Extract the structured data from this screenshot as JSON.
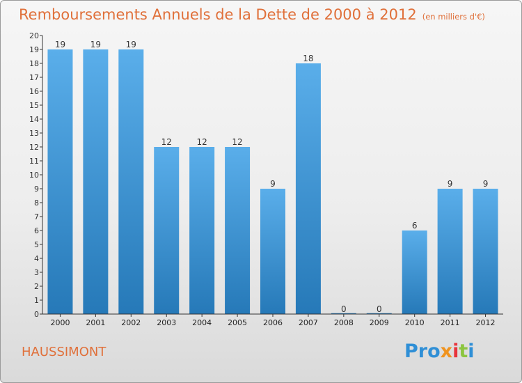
{
  "header": {
    "title": "Remboursements Annuels de la Dette de 2000 à 2012",
    "unit": "(en milliers d'€)"
  },
  "footer": {
    "commune": "HAUSSIMONT",
    "logo": [
      "Pro",
      "x",
      "i",
      "t",
      "i"
    ]
  },
  "colors": {
    "accent": "#e0703a",
    "bar_top": "#5aaeea",
    "bar_bottom": "#2679b8",
    "logo_blue": "#2f8fd6",
    "logo_orange": "#f0931e",
    "logo_red": "#e8343c",
    "logo_green": "#8cc540"
  },
  "chart_data": {
    "type": "bar",
    "title": "Remboursements Annuels de la Dette de 2000 à 2012",
    "subtitle": "(en milliers d'€)",
    "xlabel": "",
    "ylabel": "",
    "categories": [
      "2000",
      "2001",
      "2002",
      "2003",
      "2004",
      "2005",
      "2006",
      "2007",
      "2008",
      "2009",
      "2010",
      "2011",
      "2012"
    ],
    "values": [
      19,
      19,
      19,
      12,
      12,
      12,
      9,
      18,
      0,
      0,
      6,
      9,
      9
    ],
    "ylim": [
      0,
      20
    ],
    "yticks": [
      0,
      1,
      2,
      3,
      4,
      5,
      6,
      7,
      8,
      9,
      10,
      11,
      12,
      13,
      14,
      15,
      16,
      17,
      18,
      19,
      20
    ],
    "grid": false,
    "data_labels": true
  }
}
